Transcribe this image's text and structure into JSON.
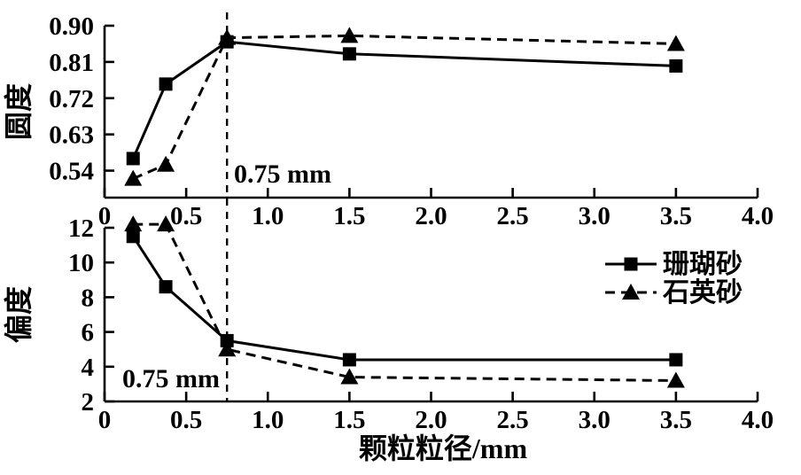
{
  "figure": {
    "xlabel": "颗粒粒径/mm",
    "background": "#ffffff",
    "ink": "#000000"
  },
  "legend": {
    "position": "bottom-panel-right",
    "items": [
      {
        "label": "珊瑚砂",
        "marker": "square",
        "line": "solid"
      },
      {
        "label": "石英砂",
        "marker": "triangle",
        "line": "dashed"
      }
    ]
  },
  "threshold": {
    "x": 0.75,
    "label": "0.75 mm"
  },
  "chart_data": [
    {
      "type": "line",
      "panel": "top",
      "ylabel": "圆度",
      "xlabel": "",
      "x": [
        0.175,
        0.375,
        0.75,
        1.5,
        3.5
      ],
      "series": [
        {
          "name": "珊瑚砂",
          "marker": "square",
          "line": "solid",
          "values": [
            0.57,
            0.755,
            0.86,
            0.83,
            0.8
          ]
        },
        {
          "name": "石英砂",
          "marker": "triangle",
          "line": "dashed",
          "values": [
            0.52,
            0.555,
            0.87,
            0.875,
            0.855
          ]
        }
      ],
      "yticks": [
        0.54,
        0.63,
        0.72,
        0.81,
        0.9
      ],
      "ytick_labels": [
        "0.54",
        "0.63",
        "0.72",
        "0.81",
        "0.90"
      ],
      "ylim": [
        0.473,
        0.9
      ],
      "xticks": [
        0,
        0.5,
        1,
        1.5,
        2,
        2.5,
        3,
        3.5,
        4
      ],
      "xtick_labels": [
        "0",
        "0.5",
        "1.0",
        "1.5",
        "2.0",
        "2.5",
        "3.0",
        "3.5",
        "4.0"
      ],
      "xlim": [
        0,
        4
      ],
      "grid": false,
      "annotation": "0.75 mm"
    },
    {
      "type": "line",
      "panel": "bottom",
      "ylabel": "偏度",
      "xlabel": "颗粒粒径/mm",
      "x": [
        0.175,
        0.375,
        0.75,
        1.5,
        3.5
      ],
      "series": [
        {
          "name": "珊瑚砂",
          "marker": "square",
          "line": "solid",
          "values": [
            11.5,
            8.6,
            5.5,
            4.4,
            4.4
          ]
        },
        {
          "name": "石英砂",
          "marker": "triangle",
          "line": "dashed",
          "values": [
            12.2,
            12.2,
            5.0,
            3.4,
            3.2
          ]
        }
      ],
      "yticks": [
        2,
        4,
        6,
        8,
        10,
        12
      ],
      "ytick_labels": [
        "2",
        "4",
        "6",
        "8",
        "10",
        "12"
      ],
      "ylim": [
        2,
        12
      ],
      "xticks": [
        0,
        0.5,
        1,
        1.5,
        2,
        2.5,
        3,
        3.5,
        4
      ],
      "xtick_labels": [
        "0",
        "0.5",
        "1.0",
        "1.5",
        "2.0",
        "2.5",
        "3.0",
        "3.5",
        "4.0"
      ],
      "xlim": [
        0,
        4
      ],
      "grid": false,
      "annotation": "0.75 mm"
    }
  ]
}
